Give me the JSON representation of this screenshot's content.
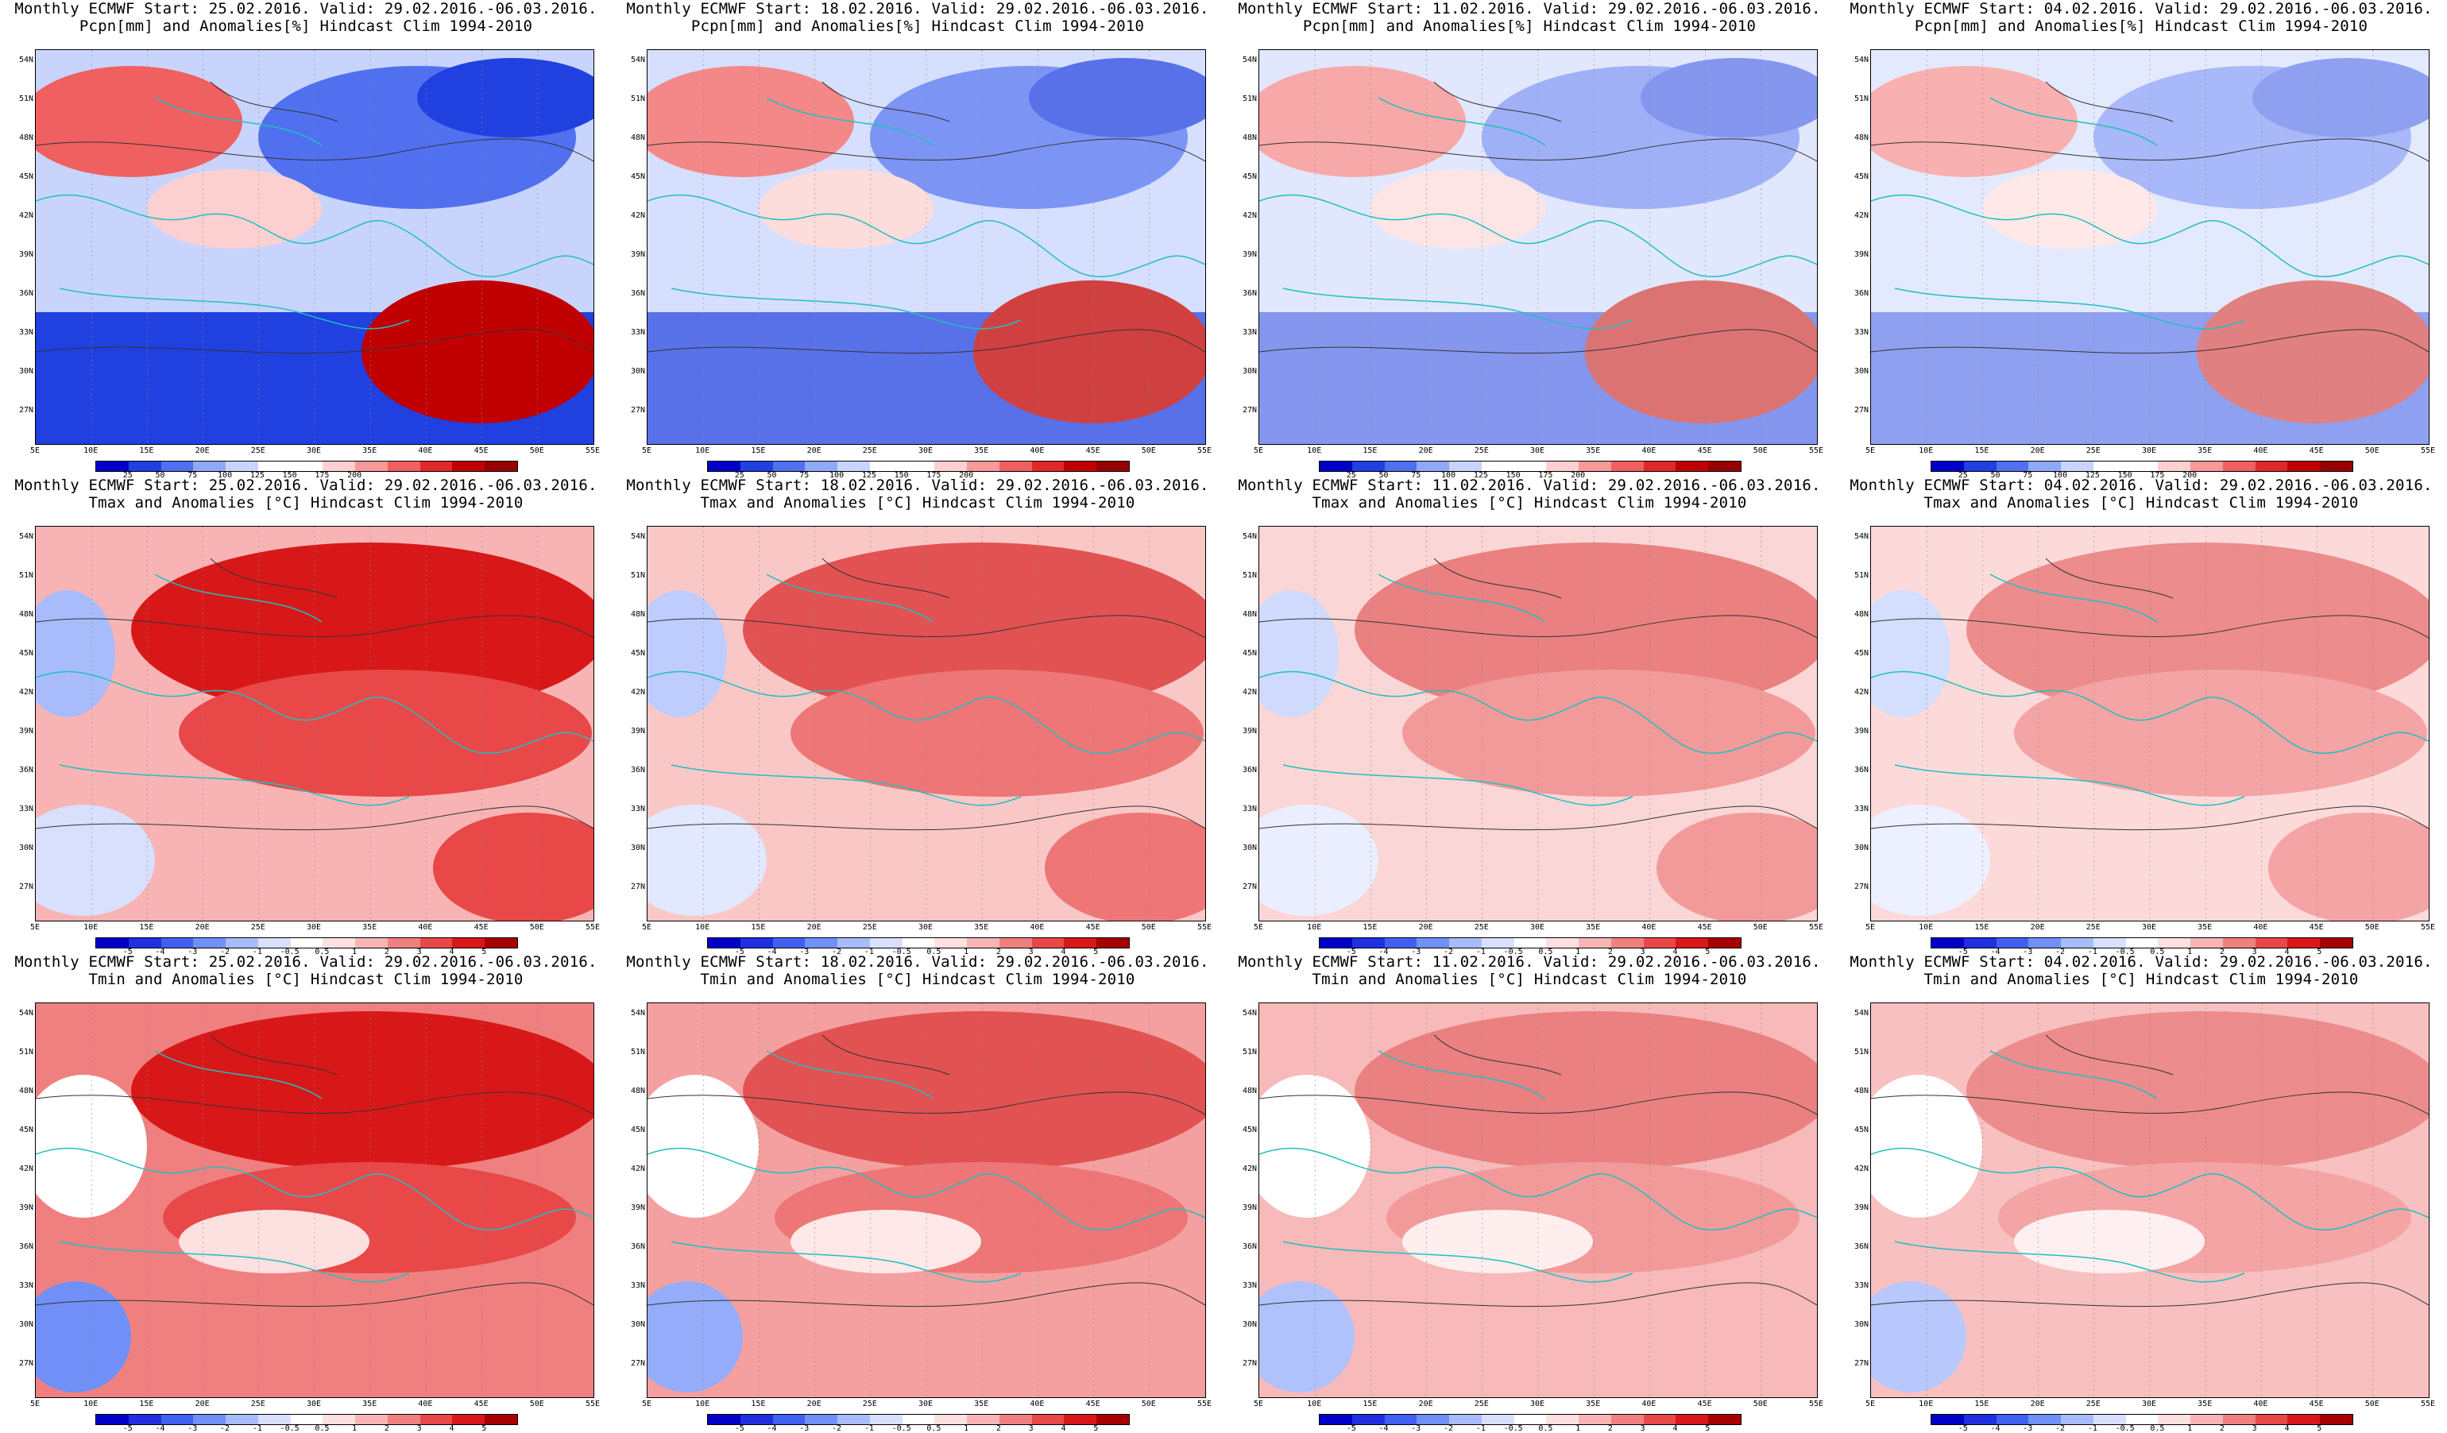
{
  "lat_labels": [
    "54N",
    "51N",
    "48N",
    "45N",
    "42N",
    "39N",
    "36N",
    "33N",
    "30N",
    "27N"
  ],
  "lon_labels": [
    "5E",
    "10E",
    "15E",
    "20E",
    "25E",
    "30E",
    "35E",
    "40E",
    "45E",
    "50E",
    "55E"
  ],
  "pcpn_scale": {
    "labels": [
      "25",
      "50",
      "75",
      "100",
      "125",
      "150",
      "175",
      "200"
    ],
    "colors": [
      "#0000c8",
      "#2040e0",
      "#5070f0",
      "#90a8f8",
      "#c8d4fc",
      "#ffffff",
      "#ffffff",
      "#fcd0d0",
      "#f89898",
      "#f06060",
      "#e02828",
      "#c00000",
      "#980000"
    ]
  },
  "temp_scale": {
    "labels": [
      "-5",
      "-4",
      "-3",
      "-2",
      "-1",
      "-0.5",
      "0.5",
      "1",
      "2",
      "3",
      "4",
      "5"
    ],
    "colors": [
      "#0000c8",
      "#2030e0",
      "#4060f0",
      "#7090f8",
      "#a8bcfc",
      "#d8e0fe",
      "#ffffff",
      "#fde0e0",
      "#f8b4b4",
      "#f08080",
      "#e84848",
      "#d81818",
      "#a80000"
    ]
  },
  "rows": [
    {
      "id": "pcpn",
      "var_line": "Pcpn[mm] and Anomalies[%] Hindcast Clim 1994-2010",
      "panels": [
        {
          "start_line": "Monthly ECMWF Start: 25.02.2016. Valid: 29.02.2016.-06.03.2016."
        },
        {
          "start_line": "Monthly ECMWF Start: 18.02.2016. Valid: 29.02.2016.-06.03.2016."
        },
        {
          "start_line": "Monthly ECMWF Start: 11.02.2016. Valid: 29.02.2016.-06.03.2016."
        },
        {
          "start_line": "Monthly ECMWF Start: 04.02.2016. Valid: 29.02.2016.-06.03.2016."
        }
      ]
    },
    {
      "id": "tmax",
      "var_line": "Tmax and Anomalies [°C] Hindcast Clim 1994-2010",
      "panels": [
        {
          "start_line": "Monthly ECMWF Start: 25.02.2016. Valid: 29.02.2016.-06.03.2016."
        },
        {
          "start_line": "Monthly ECMWF Start: 18.02.2016. Valid: 29.02.2016.-06.03.2016."
        },
        {
          "start_line": "Monthly ECMWF Start: 11.02.2016. Valid: 29.02.2016.-06.03.2016."
        },
        {
          "start_line": "Monthly ECMWF Start: 04.02.2016. Valid: 29.02.2016.-06.03.2016."
        }
      ]
    },
    {
      "id": "tmin",
      "var_line": "Tmin and Anomalies [°C] Hindcast Clim 1994-2010",
      "panels": [
        {
          "start_line": "Monthly ECMWF Start: 25.02.2016. Valid: 29.02.2016.-06.03.2016."
        },
        {
          "start_line": "Monthly ECMWF Start: 18.02.2016. Valid: 29.02.2016.-06.03.2016."
        },
        {
          "start_line": "Monthly ECMWF Start: 11.02.2016. Valid: 29.02.2016.-06.03.2016."
        },
        {
          "start_line": "Monthly ECMWF Start: 04.02.2016. Valid: 29.02.2016.-06.03.2016."
        }
      ]
    }
  ]
}
